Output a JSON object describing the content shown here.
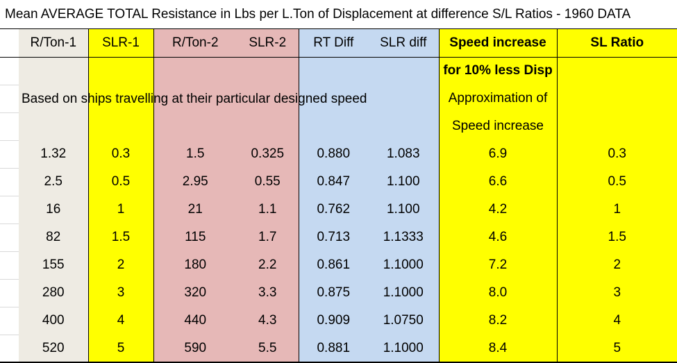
{
  "title": "Mean AVERAGE TOTAL Resistance in Lbs per L.Ton of Displacement at difference S/L Ratios - 1960 DATA",
  "headers": [
    "R/Ton-1",
    "SLR-1",
    "R/Ton-2",
    "SLR-2",
    "RT Diff",
    "SLR diff",
    "Speed increase",
    "SL Ratio"
  ],
  "notes": {
    "speed_line1": "for 10% less Disp",
    "speed_line2": "Approximation of",
    "speed_line3": "Speed increase",
    "based_on": "Based on ships travelling at their particular designed speed"
  },
  "rows": [
    {
      "r_ton_1": "1.32",
      "slr_1": "0.3",
      "r_ton_2": "1.5",
      "slr_2": "0.325",
      "rt_diff": "0.880",
      "slr_diff": "1.083",
      "speed_increase": "6.9",
      "sl_ratio": "0.3"
    },
    {
      "r_ton_1": "2.5",
      "slr_1": "0.5",
      "r_ton_2": "2.95",
      "slr_2": "0.55",
      "rt_diff": "0.847",
      "slr_diff": "1.100",
      "speed_increase": "6.6",
      "sl_ratio": "0.5"
    },
    {
      "r_ton_1": "16",
      "slr_1": "1",
      "r_ton_2": "21",
      "slr_2": "1.1",
      "rt_diff": "0.762",
      "slr_diff": "1.100",
      "speed_increase": "4.2",
      "sl_ratio": "1"
    },
    {
      "r_ton_1": "82",
      "slr_1": "1.5",
      "r_ton_2": "115",
      "slr_2": "1.7",
      "rt_diff": "0.713",
      "slr_diff": "1.1333",
      "speed_increase": "4.6",
      "sl_ratio": "1.5"
    },
    {
      "r_ton_1": "155",
      "slr_1": "2",
      "r_ton_2": "180",
      "slr_2": "2.2",
      "rt_diff": "0.861",
      "slr_diff": "1.1000",
      "speed_increase": "7.2",
      "sl_ratio": "2"
    },
    {
      "r_ton_1": "280",
      "slr_1": "3",
      "r_ton_2": "320",
      "slr_2": "3.3",
      "rt_diff": "0.875",
      "slr_diff": "1.1000",
      "speed_increase": "8.0",
      "sl_ratio": "3"
    },
    {
      "r_ton_1": "400",
      "slr_1": "4",
      "r_ton_2": "440",
      "slr_2": "4.3",
      "rt_diff": "0.909",
      "slr_diff": "1.0750",
      "speed_increase": "8.2",
      "sl_ratio": "4"
    },
    {
      "r_ton_1": "520",
      "slr_1": "5",
      "r_ton_2": "590",
      "slr_2": "5.5",
      "rt_diff": "0.881",
      "slr_diff": "1.1000",
      "speed_increase": "8.4",
      "sl_ratio": "5"
    }
  ],
  "colors": {
    "beige": "#eeebe3",
    "yellow": "#ffff00",
    "pink": "#e6b8b7",
    "blue": "#c5d9f1"
  }
}
